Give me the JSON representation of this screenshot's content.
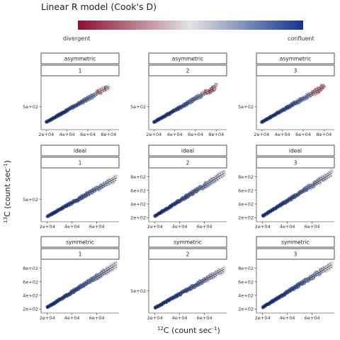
{
  "legend": {
    "title": "Linear R model (Cook's D)",
    "low_label": "divergent",
    "high_label": "confluent",
    "colors": {
      "low": "#8e0f2e",
      "mid": "#e3e3e3",
      "high": "#12348f"
    }
  },
  "axes": {
    "x_label_main": "C (count sec",
    "x_label_sup_iso": "12",
    "x_label_sup_unit": "-1",
    "x_label_close": ")",
    "y_label_main": "C (count sec",
    "y_label_sup_iso": "13",
    "y_label_sup_unit": "-1",
    "y_label_close": ")"
  },
  "chart_data": {
    "type": "scatter",
    "facet_rows": [
      "asymmetric",
      "ideal",
      "symmetric"
    ],
    "facet_cols": [
      "1",
      "2",
      "3"
    ],
    "x_ticks": [
      20000,
      40000,
      60000,
      80000
    ],
    "panels": [
      {
        "row": "asymmetric",
        "col": "1",
        "x_range": [
          15000,
          90000
        ],
        "y_range": [
          80,
          1050
        ],
        "y_ticks": [
          500
        ],
        "y_tick_labels": [
          "5e+02"
        ],
        "x_tick_labels": [
          "2e+04",
          "4e+04",
          "6e+04",
          "8e+04"
        ],
        "slope": 0.0108,
        "intercept": 0,
        "outlier_start": 68000
      },
      {
        "row": "asymmetric",
        "col": "2",
        "x_range": [
          15000,
          90000
        ],
        "y_range": [
          80,
          1050
        ],
        "y_ticks": [
          500
        ],
        "y_tick_labels": [
          "5e+02"
        ],
        "x_tick_labels": [
          "2e+04",
          "4e+04",
          "6e+04",
          "8e+04"
        ],
        "slope": 0.0108,
        "intercept": 0,
        "outlier_start": 68000
      },
      {
        "row": "asymmetric",
        "col": "3",
        "x_range": [
          15000,
          90000
        ],
        "y_range": [
          80,
          1050
        ],
        "y_ticks": [
          500
        ],
        "y_tick_labels": [
          "5e+02"
        ],
        "x_tick_labels": [
          "2e+04",
          "4e+04",
          "6e+04",
          "8e+04"
        ],
        "slope": 0.0108,
        "intercept": 0,
        "outlier_start": 68000
      },
      {
        "row": "ideal",
        "col": "1",
        "x_range": [
          15000,
          78000
        ],
        "y_range": [
          140,
          1000
        ],
        "y_ticks": [
          500
        ],
        "y_tick_labels": [
          "5e+02"
        ],
        "x_tick_labels": [
          "2e+04",
          "4e+04",
          "6e+04"
        ],
        "slope": 0.0112,
        "intercept": 0
      },
      {
        "row": "ideal",
        "col": "2",
        "x_range": [
          15000,
          78000
        ],
        "y_range": [
          140,
          920
        ],
        "y_ticks": [
          200,
          400,
          600,
          800
        ],
        "y_tick_labels": [
          "2e+02",
          "4e+02",
          "6e+02",
          "8e+02"
        ],
        "x_tick_labels": [
          "2e+04",
          "4e+04",
          "6e+04"
        ],
        "slope": 0.0112,
        "intercept": 0
      },
      {
        "row": "ideal",
        "col": "3",
        "x_range": [
          15000,
          78000
        ],
        "y_range": [
          140,
          920
        ],
        "y_ticks": [
          200,
          400,
          600,
          800
        ],
        "y_tick_labels": [
          "2e+02",
          "4e+02",
          "6e+02",
          "8e+02"
        ],
        "x_tick_labels": [
          "2e+04",
          "4e+04",
          "6e+04"
        ],
        "slope": 0.0112,
        "intercept": 0
      },
      {
        "row": "symmetric",
        "col": "1",
        "x_range": [
          15000,
          78000
        ],
        "y_range": [
          140,
          920
        ],
        "y_ticks": [
          200,
          400,
          600,
          800
        ],
        "y_tick_labels": [
          "2e+02",
          "4e+02",
          "6e+02",
          "8e+02"
        ],
        "x_tick_labels": [
          "2e+04",
          "4e+04",
          "6e+04"
        ],
        "slope": 0.0112,
        "intercept": 0
      },
      {
        "row": "symmetric",
        "col": "2",
        "x_range": [
          15000,
          78000
        ],
        "y_range": [
          140,
          1000
        ],
        "y_ticks": [
          500
        ],
        "y_tick_labels": [
          "5e+02"
        ],
        "x_tick_labels": [
          "2e+04",
          "4e+04",
          "6e+04"
        ],
        "slope": 0.0112,
        "intercept": 0
      },
      {
        "row": "symmetric",
        "col": "3",
        "x_range": [
          15000,
          78000
        ],
        "y_range": [
          140,
          920
        ],
        "y_ticks": [
          200,
          400,
          600,
          800
        ],
        "y_tick_labels": [
          "2e+02",
          "4e+02",
          "6e+02",
          "8e+02"
        ],
        "x_tick_labels": [
          "2e+04",
          "4e+04",
          "6e+04"
        ],
        "slope": 0.0112,
        "intercept": 0
      }
    ]
  }
}
